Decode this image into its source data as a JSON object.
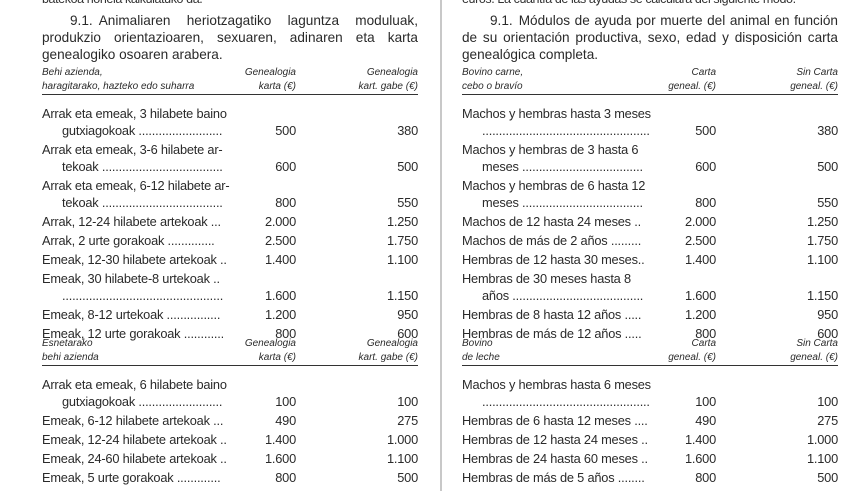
{
  "left": {
    "cut_top": "batekoa honela kalkulatuko da.",
    "heading_num": "9.1.",
    "heading": "Animaliaren heriotzagatiko laguntza moduluak, produkzio orientazioaren, sexuaren, adinaren eta karta genealogiko osoaren arabera.",
    "table1": {
      "h1a": "Behi azienda,",
      "h1b": "haragitarako, hazteko edo suharra",
      "h2a": "Genealogia",
      "h2b": "karta (€)",
      "h3a": "Genealogia",
      "h3b": "kart. gabe (€)",
      "rows": [
        {
          "label": "Arrak eta emeak, 3 hilabete baino",
          "cont": "gutxiagokoak .........................",
          "v1": "500",
          "v2": "380"
        },
        {
          "label": "Arrak eta emeak, 3-6 hilabete ar-",
          "cont": "tekoak ....................................",
          "v1": "600",
          "v2": "500"
        },
        {
          "label": "Arrak eta emeak, 6-12 hilabete ar-",
          "cont": "tekoak ....................................",
          "v1": "800",
          "v2": "550"
        },
        {
          "label": "Arrak, 12-24 hilabete artekoak ...",
          "v1": "2.000",
          "v2": "1.250"
        },
        {
          "label": "Arrak, 2 urte gorakoak ..............",
          "v1": "2.500",
          "v2": "1.750"
        },
        {
          "label": "Emeak, 12-30 hilabete artekoak ..",
          "v1": "1.400",
          "v2": "1.100"
        },
        {
          "label": "Emeak, 30 hilabete-8 urtekoak ..",
          "cont": "................................................",
          "v1": "1.600",
          "v2": "1.150"
        },
        {
          "label": "Emeak, 8-12 urtekoak ................",
          "v1": "1.200",
          "v2": "950"
        },
        {
          "label": "Emeak, 12 urte gorakoak ............",
          "v1": "800",
          "v2": "600"
        }
      ]
    },
    "table2": {
      "h1a": "Esnetarako",
      "h1b": "behi azienda",
      "h2a": "Genealogia",
      "h2b": "karta (€)",
      "h3a": "Genealogia",
      "h3b": "kart. gabe (€)",
      "rows": [
        {
          "label": "Arrak eta emeak, 6 hilabete baino",
          "cont": "gutxiagokoak .........................",
          "v1": "100",
          "v2": "100"
        },
        {
          "label": "Emeak, 6-12 hilabete artekoak ...",
          "v1": "490",
          "v2": "275"
        },
        {
          "label": "Emeak, 12-24 hilabete artekoak ..",
          "v1": "1.400",
          "v2": "1.000"
        },
        {
          "label": "Emeak, 24-60 hilabete artekoak ..",
          "v1": "1.600",
          "v2": "1.100"
        },
        {
          "label": "Emeak, 5 urte gorakoak .............",
          "v1": "800",
          "v2": "500"
        }
      ]
    }
  },
  "right": {
    "cut_top": "euros. La cuantía de las ayudas se calculará del siguiente modo.",
    "heading_num": "9.1.",
    "heading": "Módulos de ayuda por muerte del animal en función de su orientación productiva, sexo, edad y disposición carta genealógica completa.",
    "table1": {
      "h1a": "Bovino carne,",
      "h1b": "cebo o bravío",
      "h2a": "Carta",
      "h2b": "geneal. (€)",
      "h3a": "Sin Carta",
      "h3b": "geneal. (€)",
      "rows": [
        {
          "label": "Machos y hembras hasta 3 meses",
          "cont": "..................................................",
          "v1": "500",
          "v2": "380"
        },
        {
          "label": "Machos y hembras de 3 hasta 6",
          "cont": "meses ....................................",
          "v1": "600",
          "v2": "500"
        },
        {
          "label": "Machos y hembras de 6 hasta 12",
          "cont": "meses ....................................",
          "v1": "800",
          "v2": "550"
        },
        {
          "label": "Machos de 12 hasta 24 meses ..",
          "v1": "2.000",
          "v2": "1.250"
        },
        {
          "label": "Machos de más de 2 años .........",
          "v1": "2.500",
          "v2": "1.750"
        },
        {
          "label": "Hembras de 12 hasta 30 meses..",
          "v1": "1.400",
          "v2": "1.100"
        },
        {
          "label": "Hembras de 30 meses hasta 8",
          "cont": "años .......................................",
          "v1": "1.600",
          "v2": "1.150"
        },
        {
          "label": "Hembras de 8 hasta 12 años .....",
          "v1": "1.200",
          "v2": "950"
        },
        {
          "label": "Hembras de más de 12 años .....",
          "v1": "800",
          "v2": "600"
        }
      ]
    },
    "table2": {
      "h1a": "Bovino",
      "h1b": "de leche",
      "h2a": "Carta",
      "h2b": "geneal. (€)",
      "h3a": "Sin Carta",
      "h3b": "geneal. (€)",
      "rows": [
        {
          "label": "Machos y hembras hasta 6 meses",
          "cont": "..................................................",
          "v1": "100",
          "v2": "100"
        },
        {
          "label": "Hembras de 6 hasta 12 meses ....",
          "v1": "490",
          "v2": "275"
        },
        {
          "label": "Hembras de 12 hasta 24 meses ..",
          "v1": "1.400",
          "v2": "1.000"
        },
        {
          "label": "Hembras de 24 hasta 60 meses ..",
          "v1": "1.600",
          "v2": "1.100"
        },
        {
          "label": "Hembras de más de 5 años ........",
          "v1": "800",
          "v2": "500"
        }
      ]
    }
  }
}
